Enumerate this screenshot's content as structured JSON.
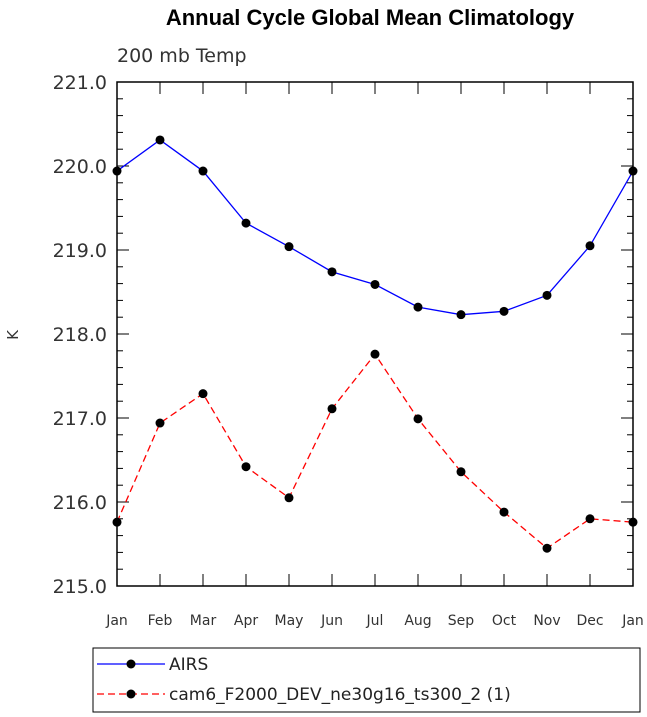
{
  "chart_data": {
    "type": "line",
    "title": "Annual Cycle Global Mean Climatology",
    "subtitle": "200 mb Temp",
    "xlabel": "",
    "ylabel": "K",
    "categories": [
      "Jan",
      "Feb",
      "Mar",
      "Apr",
      "May",
      "Jun",
      "Jul",
      "Aug",
      "Sep",
      "Oct",
      "Nov",
      "Dec",
      "Jan"
    ],
    "ylim": [
      215.0,
      221.0
    ],
    "yticks": [
      "215.0",
      "216.0",
      "217.0",
      "218.0",
      "219.0",
      "220.0",
      "221.0"
    ],
    "grid": false,
    "legend_position": "bottom-left",
    "series": [
      {
        "name": "AIRS",
        "color": "#0000ff",
        "dash": "solid",
        "values": [
          219.94,
          220.31,
          219.94,
          219.32,
          219.04,
          218.74,
          218.59,
          218.32,
          218.23,
          218.27,
          218.46,
          219.05,
          219.94
        ]
      },
      {
        "name": "cam6_F2000_DEV_ne30g16_ts300_2 (1)",
        "color": "#ff0000",
        "dash": "dashed",
        "values": [
          215.76,
          216.94,
          217.29,
          216.42,
          216.05,
          217.11,
          217.76,
          216.99,
          216.36,
          215.88,
          215.45,
          215.8,
          215.76
        ]
      }
    ]
  }
}
